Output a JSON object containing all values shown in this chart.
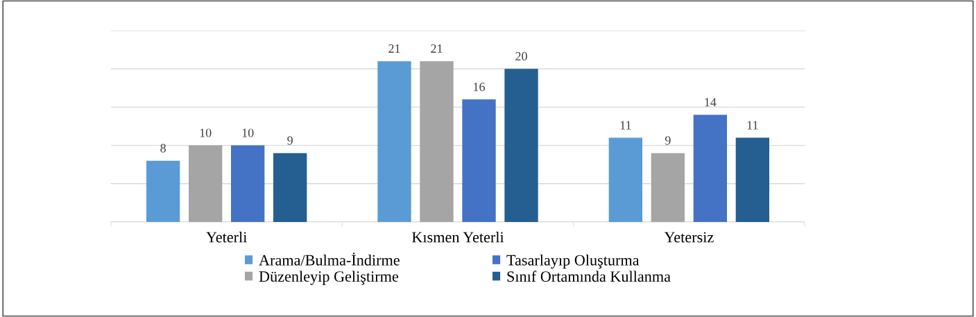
{
  "chart_data": {
    "type": "bar",
    "categories": [
      "Yeterli",
      "Kısmen Yeterli",
      "Yetersiz"
    ],
    "series": [
      {
        "name": "Arama/Bulma-İndirme",
        "color": "#5b9bd5",
        "values": [
          8,
          21,
          11
        ]
      },
      {
        "name": "Düzenleyip Geliştirme",
        "color": "#a5a5a5",
        "values": [
          10,
          21,
          9
        ]
      },
      {
        "name": "Tasarlayıp Oluşturma",
        "color": "#4472c4",
        "values": [
          10,
          16,
          14
        ]
      },
      {
        "name": "Sınıf Ortamında Kullanma",
        "color": "#255e91",
        "values": [
          9,
          20,
          11
        ]
      }
    ],
    "ylim": [
      0,
      25
    ],
    "yticks": [
      {
        "value": 0,
        "label": null
      },
      {
        "value": 5,
        "label": null
      },
      {
        "value": 10,
        "label": null
      },
      {
        "value": 15,
        "label": null
      },
      {
        "value": 20,
        "label": null
      },
      {
        "value": 25,
        "label": null
      }
    ],
    "tick_labels": "x",
    "grid": "y",
    "data_labels": true,
    "legend": "bottom"
  }
}
